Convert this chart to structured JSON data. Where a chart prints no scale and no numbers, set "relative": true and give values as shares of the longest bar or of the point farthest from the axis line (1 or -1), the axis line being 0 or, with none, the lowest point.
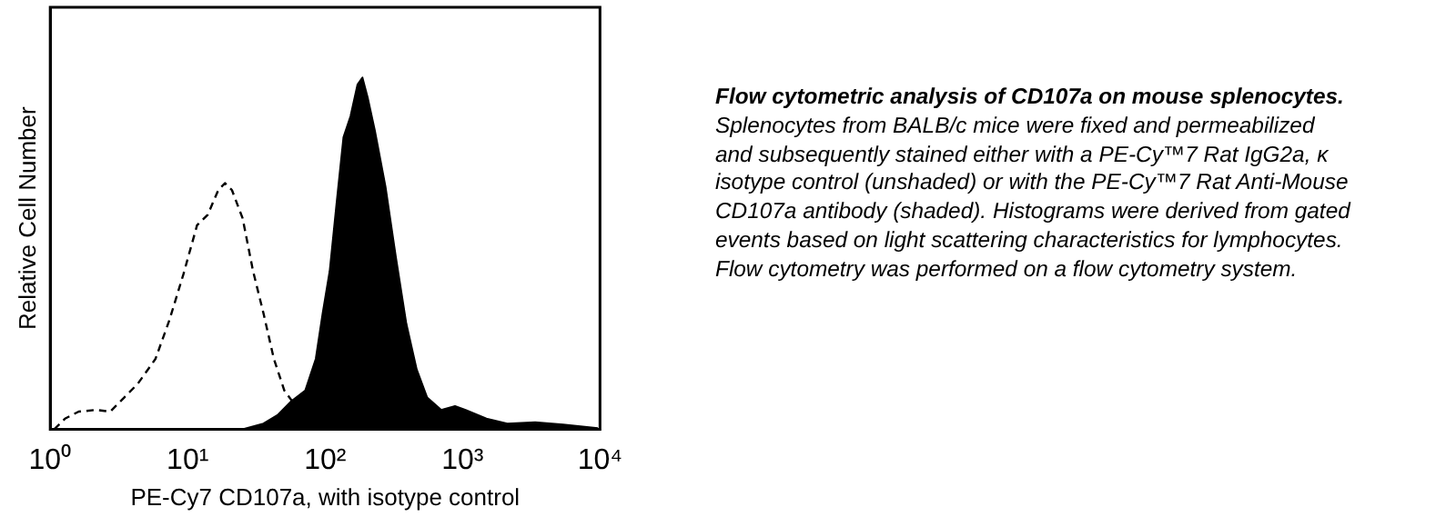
{
  "chart_data": {
    "type": "area",
    "xlabel": "PE-Cy7 CD107a, with isotype control",
    "ylabel": "Relative Cell Number",
    "log": "x",
    "relative": true,
    "tick_labels": "x",
    "xlim": [
      1,
      10000
    ],
    "xticks": [
      {
        "value": 1,
        "label": "10⁰"
      },
      {
        "value": 10,
        "label": "10¹"
      },
      {
        "value": 100,
        "label": "10²"
      },
      {
        "value": 1000,
        "label": "10³"
      },
      {
        "value": 10000,
        "label": "10⁴"
      }
    ],
    "series": [
      {
        "type": "line",
        "line_style": "dashed",
        "color": "#000000",
        "x": [
          1.07,
          1.28,
          1.61,
          2.16,
          2.73,
          3.45,
          4.35,
          5.83,
          7.36,
          9.3,
          11.7,
          14.0,
          16.7,
          18.7,
          21.0,
          25.1,
          29.9,
          35.6,
          42.4,
          50.5,
          60.2,
          76.0,
          90.6
        ],
        "values": [
          0,
          0.03,
          0.05,
          0.055,
          0.05,
          0.09,
          0.13,
          0.2,
          0.31,
          0.44,
          0.58,
          0.61,
          0.68,
          0.7,
          0.68,
          0.6,
          0.45,
          0.33,
          0.2,
          0.11,
          0.07,
          0.03,
          0
        ]
      },
      {
        "type": "area",
        "color": "#000000",
        "x": [
          25.1,
          35.6,
          45.0,
          56.8,
          71.7,
          85.5,
          96,
          108,
          121,
          136,
          153,
          172,
          187,
          205,
          230,
          275,
          327,
          390,
          464,
          553,
          698,
          881,
          1052,
          1492,
          2118,
          3377,
          5383,
          9660
        ],
        "values": [
          0,
          0.016,
          0.04,
          0.08,
          0.11,
          0.2,
          0.33,
          0.45,
          0.64,
          0.83,
          0.89,
          0.98,
          1,
          0.94,
          0.85,
          0.69,
          0.49,
          0.3,
          0.17,
          0.09,
          0.055,
          0.066,
          0.055,
          0.03,
          0.016,
          0.02,
          0.013,
          0.003
        ]
      }
    ],
    "annotations": [
      "Flow cytometric analysis of CD107a on mouse splenocytes.",
      "Splenocytes from BALB/c mice were fixed and permeabilized and subsequently stained either with a PE-Cy™7 Rat IgG2a, κ isotype control (unshaded) or with the PE-Cy™7 Rat Anti-Mouse CD107a antibody (shaded). Histograms were derived from gated events based on light scattering characteristics for lymphocytes. Flow cytometry was performed on a flow cytometry system."
    ]
  }
}
